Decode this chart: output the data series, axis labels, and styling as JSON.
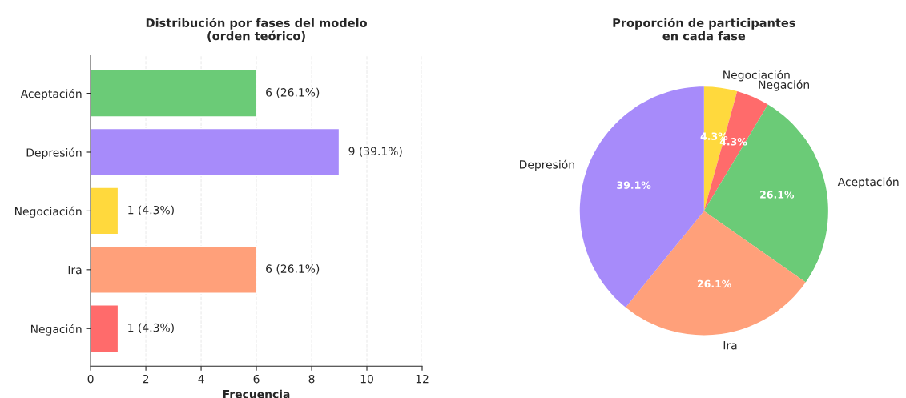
{
  "chart_data": [
    {
      "type": "bar",
      "orientation": "horizontal",
      "title": "Distribución por fases del modelo\n(orden teórico)",
      "xlabel": "Frecuencia",
      "categories": [
        "Aceptación",
        "Depresión",
        "Negociación",
        "Ira",
        "Negación"
      ],
      "values": [
        6,
        9,
        1,
        6,
        1
      ],
      "colors": [
        "#6bcb77",
        "#a78bfa",
        "#ffd93d",
        "#ffa07a",
        "#ff6b6b"
      ],
      "value_labels": [
        "6 (26.1%)",
        "9 (39.1%)",
        "1 (4.3%)",
        "6 (26.1%)",
        "1 (4.3%)"
      ],
      "xlim": [
        0,
        12
      ],
      "xticks": [
        0,
        2,
        4,
        6,
        8,
        10,
        12
      ],
      "grid": "x"
    },
    {
      "type": "pie",
      "title": "Proporción de participantes\nen cada fase",
      "categories": [
        "Negociación",
        "Negación",
        "Aceptación",
        "Ira",
        "Depresión"
      ],
      "values": [
        4.3,
        4.3,
        26.1,
        26.1,
        39.1
      ],
      "colors": [
        "#ffd93d",
        "#ff6b6b",
        "#6bcb77",
        "#ffa07a",
        "#a78bfa"
      ],
      "value_labels": [
        "4.3%",
        "4.3%",
        "26.1%",
        "26.1%",
        "39.1%"
      ]
    }
  ]
}
